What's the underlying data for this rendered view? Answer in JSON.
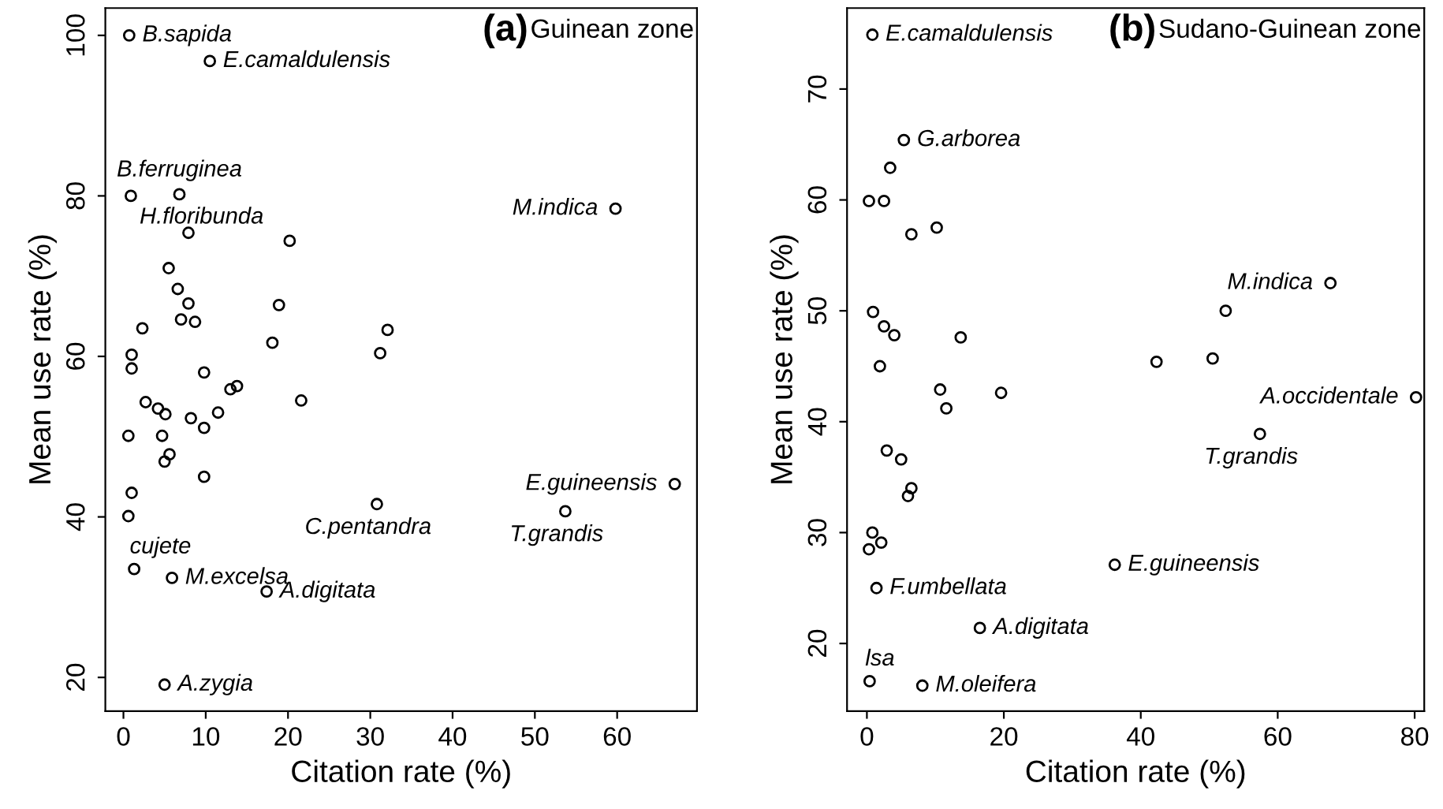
{
  "chart_data": [
    {
      "type": "scatter",
      "title": "(a)",
      "subtitle": "Guinean zone",
      "xlabel": "Citation rate (%)",
      "ylabel": "Mean use rate (%)",
      "series": [
        {
          "color": "#000000",
          "x": [
            0.7,
            10.5,
            0.9,
            6.8,
            7.9,
            20.2,
            5.5,
            6.6,
            7.9,
            18.9,
            7.0,
            8.7,
            2.3,
            32.1,
            18.1,
            1.0,
            31.2,
            1.0,
            9.8,
            13.8,
            13.0,
            2.7,
            21.6,
            4.2,
            5.1,
            11.5,
            8.2,
            9.8,
            0.6,
            4.7,
            5.6,
            5.0,
            9.8,
            1.0,
            30.8,
            0.6,
            1.3,
            5.9,
            17.4,
            5.0,
            59.8,
            67.0,
            53.7
          ],
          "values": [
            100,
            96.8,
            80.0,
            80.2,
            75.4,
            74.4,
            71.0,
            68.4,
            66.6,
            66.4,
            64.6,
            64.3,
            63.5,
            63.3,
            61.7,
            60.2,
            60.4,
            58.5,
            58.0,
            56.3,
            55.9,
            54.3,
            54.5,
            53.5,
            52.8,
            53.0,
            52.3,
            51.1,
            50.1,
            50.1,
            47.8,
            46.9,
            45.0,
            43.0,
            41.6,
            40.1,
            33.5,
            32.4,
            30.7,
            19.1,
            78.4,
            44.1,
            40.7
          ]
        }
      ],
      "marker": "circle",
      "grid": false,
      "legend": false,
      "xlim": [
        -2.2,
        69.7
      ],
      "xticks": [
        0,
        10,
        20,
        30,
        40,
        50,
        60
      ],
      "ylim": [
        15.8,
        103.4
      ],
      "yticks": [
        20,
        40,
        60,
        80,
        100
      ],
      "annotations": [
        {
          "text": "B.sapida",
          "x": 0.7,
          "y": 100
        },
        {
          "text": "E.camaldulensis",
          "x": 10.5,
          "y": 96.8
        },
        {
          "text": "B.ferruginea",
          "x": 6.8,
          "y": 80.2
        },
        {
          "text": "H.floribunda",
          "x": 0.9,
          "y": 80.0
        },
        {
          "text": "M.indica",
          "x": 59.8,
          "y": 78.4
        },
        {
          "text": "C.pentandra",
          "x": 30.8,
          "y": 41.6
        },
        {
          "text": "E.guineensis",
          "x": 67.0,
          "y": 44.1
        },
        {
          "text": "T.grandis",
          "x": 53.7,
          "y": 40.7
        },
        {
          "text": "cujete",
          "x": 1.3,
          "y": 33.5
        },
        {
          "text": "M.excelsa",
          "x": 5.9,
          "y": 32.4
        },
        {
          "text": "A.digitata",
          "x": 17.4,
          "y": 30.7
        },
        {
          "text": "A.zygia",
          "x": 5.0,
          "y": 19.1
        }
      ]
    },
    {
      "type": "scatter",
      "title": "(b)",
      "subtitle": "Sudano-Guinean zone",
      "xlabel": "Citation rate (%)",
      "ylabel": "Mean use rate (%)",
      "series": [
        {
          "color": "#000000",
          "x": [
            0.8,
            5.4,
            3.4,
            0.3,
            2.5,
            10.2,
            6.5,
            0.9,
            2.5,
            4.0,
            13.7,
            1.9,
            10.7,
            19.6,
            11.6,
            2.9,
            5.0,
            6.5,
            6.0,
            0.8,
            2.1,
            0.3,
            36.2,
            1.4,
            16.5,
            0.4,
            8.1,
            67.7,
            52.4,
            42.3,
            50.5,
            80.2,
            57.4
          ],
          "values": [
            74.9,
            65.4,
            62.9,
            59.9,
            59.9,
            57.5,
            56.9,
            49.9,
            48.6,
            47.8,
            47.6,
            45.0,
            42.9,
            42.6,
            41.2,
            37.4,
            36.6,
            34.0,
            33.3,
            30.0,
            29.1,
            28.5,
            27.1,
            25.0,
            21.4,
            16.6,
            16.2,
            52.5,
            50.0,
            45.4,
            45.7,
            42.2,
            38.9
          ]
        }
      ],
      "marker": "circle",
      "grid": false,
      "legend": false,
      "xlim": [
        -2.9,
        81.4
      ],
      "xticks": [
        0,
        20,
        40,
        60,
        80
      ],
      "ylim": [
        13.9,
        77.3
      ],
      "yticks": [
        20,
        30,
        40,
        50,
        60,
        70
      ],
      "annotations": [
        {
          "text": "E.camaldulensis",
          "x": 0.8,
          "y": 74.9
        },
        {
          "text": "G.arborea",
          "x": 5.4,
          "y": 65.4
        },
        {
          "text": "M.indica",
          "x": 67.7,
          "y": 52.5
        },
        {
          "text": "A.occidentale",
          "x": 80.2,
          "y": 42.2
        },
        {
          "text": "T.grandis",
          "x": 57.4,
          "y": 38.9
        },
        {
          "text": "E.guineensis",
          "x": 36.2,
          "y": 27.1
        },
        {
          "text": "F.umbellata",
          "x": 1.4,
          "y": 25.0
        },
        {
          "text": "A.digitata",
          "x": 16.5,
          "y": 21.4
        },
        {
          "text": "lsa",
          "x": 0.4,
          "y": 16.6
        },
        {
          "text": "M.oleifera",
          "x": 8.1,
          "y": 16.2
        }
      ]
    }
  ]
}
